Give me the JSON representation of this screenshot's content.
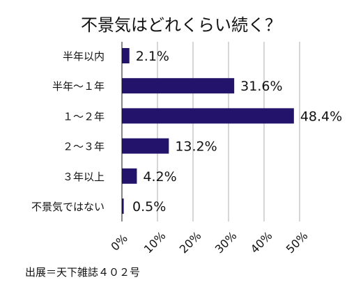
{
  "chart_data": {
    "type": "bar",
    "orientation": "horizontal",
    "title": "不景気はどれくらい続く？",
    "categories": [
      "半年以内",
      "半年〜１年",
      "１〜２年",
      "２〜３年",
      "３年以上",
      "不景気ではない"
    ],
    "values": [
      2.1,
      31.6,
      48.4,
      13.2,
      4.2,
      0.5
    ],
    "data_labels": [
      "2.1%",
      "31.6%",
      "48.4%",
      "13.2%",
      "4.2%",
      "0.5%"
    ],
    "xlim": [
      0,
      50
    ],
    "x_ticks": [
      0,
      10,
      20,
      30,
      40,
      50
    ],
    "x_tick_labels": [
      "0%",
      "10%",
      "20%",
      "30%",
      "40%",
      "50%"
    ],
    "grid": true,
    "bar_color": "#24136b",
    "grid_color": "#c8c8c8",
    "source": "出展＝天下雑誌４０２号"
  }
}
